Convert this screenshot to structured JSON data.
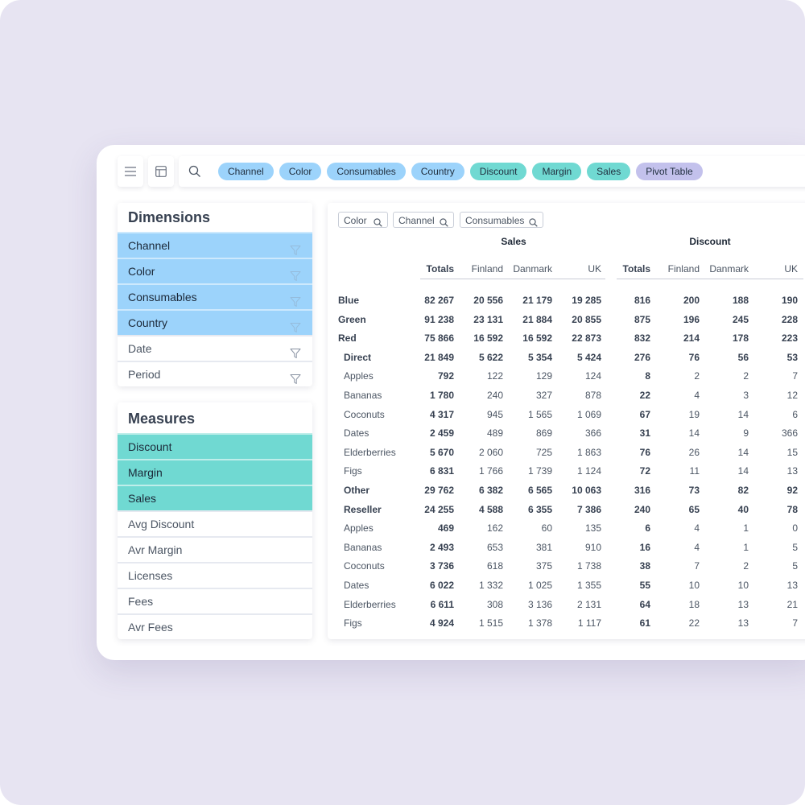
{
  "toolbar": {
    "chips": [
      {
        "label": "Channel",
        "color": "#9cd3fb",
        "name": "chip-channel"
      },
      {
        "label": "Color",
        "color": "#9cd3fb",
        "name": "chip-color"
      },
      {
        "label": "Consumables",
        "color": "#9cd3fb",
        "name": "chip-consumables"
      },
      {
        "label": "Country",
        "color": "#9cd3fb",
        "name": "chip-country"
      },
      {
        "label": "Discount",
        "color": "#70d9d2",
        "name": "chip-discount"
      },
      {
        "label": "Margin",
        "color": "#70d9d2",
        "name": "chip-margin"
      },
      {
        "label": "Sales",
        "color": "#70d9d2",
        "name": "chip-sales"
      },
      {
        "label": "Pivot Table",
        "color": "#c3c1ec",
        "name": "chip-pivot-table"
      }
    ]
  },
  "dimensions": {
    "title": "Dimensions",
    "items": [
      {
        "label": "Channel",
        "active": true
      },
      {
        "label": "Color",
        "active": true
      },
      {
        "label": "Consumables",
        "active": true
      },
      {
        "label": "Country",
        "active": true
      },
      {
        "label": "Date",
        "active": false
      },
      {
        "label": "Period",
        "active": false
      }
    ]
  },
  "measures": {
    "title": "Measures",
    "items": [
      {
        "label": "Discount",
        "active": true
      },
      {
        "label": "Margin",
        "active": true
      },
      {
        "label": "Sales",
        "active": true
      },
      {
        "label": "Avg Discount",
        "active": false
      },
      {
        "label": "Avr Margin",
        "active": false
      },
      {
        "label": "Licenses",
        "active": false
      },
      {
        "label": "Fees",
        "active": false
      },
      {
        "label": "Avr Fees",
        "active": false
      }
    ]
  },
  "pivot": {
    "row_fields": [
      "Color",
      "Channel",
      "Consumables"
    ],
    "groups": [
      "Sales",
      "Discount"
    ],
    "columns": [
      "Totals",
      "Finland",
      "Danmark",
      "UK"
    ],
    "rows": [
      {
        "label": "Blue",
        "level": 1,
        "values": [
          "82 267",
          "20 556",
          "21 179",
          "19 285",
          "816",
          "200",
          "188",
          "190"
        ]
      },
      {
        "label": "Green",
        "level": 1,
        "values": [
          "91 238",
          "23 131",
          "21 884",
          "20 855",
          "875",
          "196",
          "245",
          "228"
        ]
      },
      {
        "label": "Red",
        "level": 1,
        "values": [
          "75 866",
          "16 592",
          "16 592",
          "22 873",
          "832",
          "214",
          "178",
          "223"
        ]
      },
      {
        "label": "Direct",
        "level": 2,
        "values": [
          "21 849",
          "5 622",
          "5 354",
          "5 424",
          "276",
          "76",
          "56",
          "53"
        ]
      },
      {
        "label": "Apples",
        "level": 3,
        "values": [
          "792",
          "122",
          "129",
          "124",
          "8",
          "2",
          "2",
          "7"
        ]
      },
      {
        "label": "Bananas",
        "level": 3,
        "values": [
          "1 780",
          "240",
          "327",
          "878",
          "22",
          "4",
          "3",
          "12"
        ]
      },
      {
        "label": "Coconuts",
        "level": 3,
        "values": [
          "4 317",
          "945",
          "1 565",
          "1 069",
          "67",
          "19",
          "14",
          "6"
        ]
      },
      {
        "label": "Dates",
        "level": 3,
        "values": [
          "2 459",
          "489",
          "869",
          "366",
          "31",
          "14",
          "9",
          "366"
        ]
      },
      {
        "label": "Elderberries",
        "level": 3,
        "values": [
          "5 670",
          "2 060",
          "725",
          "1 863",
          "76",
          "26",
          "14",
          "15"
        ]
      },
      {
        "label": "Figs",
        "level": 3,
        "values": [
          "6 831",
          "1 766",
          "1 739",
          "1 124",
          "72",
          "11",
          "14",
          "13"
        ]
      },
      {
        "label": "Other",
        "level": 2,
        "values": [
          "29 762",
          "6 382",
          "6 565",
          "10 063",
          "316",
          "73",
          "82",
          "92"
        ]
      },
      {
        "label": "Reseller",
        "level": 2,
        "values": [
          "24 255",
          "4 588",
          "6 355",
          "7 386",
          "240",
          "65",
          "40",
          "78"
        ]
      },
      {
        "label": "Apples",
        "level": 3,
        "values": [
          "469",
          "162",
          "60",
          "135",
          "6",
          "4",
          "1",
          "0"
        ]
      },
      {
        "label": "Bananas",
        "level": 3,
        "values": [
          "2 493",
          "653",
          "381",
          "910",
          "16",
          "4",
          "1",
          "5"
        ]
      },
      {
        "label": "Coconuts",
        "level": 3,
        "values": [
          "3 736",
          "618",
          "375",
          "1 738",
          "38",
          "7",
          "2",
          "5"
        ]
      },
      {
        "label": "Dates",
        "level": 3,
        "values": [
          "6 022",
          "1 332",
          "1 025",
          "1 355",
          "55",
          "10",
          "10",
          "13"
        ]
      },
      {
        "label": "Elderberries",
        "level": 3,
        "values": [
          "6 611",
          "308",
          "3 136",
          "2 131",
          "64",
          "18",
          "13",
          "21"
        ]
      },
      {
        "label": "Figs",
        "level": 3,
        "values": [
          "4 924",
          "1 515",
          "1 378",
          "1 117",
          "61",
          "22",
          "13",
          "7"
        ]
      }
    ]
  }
}
